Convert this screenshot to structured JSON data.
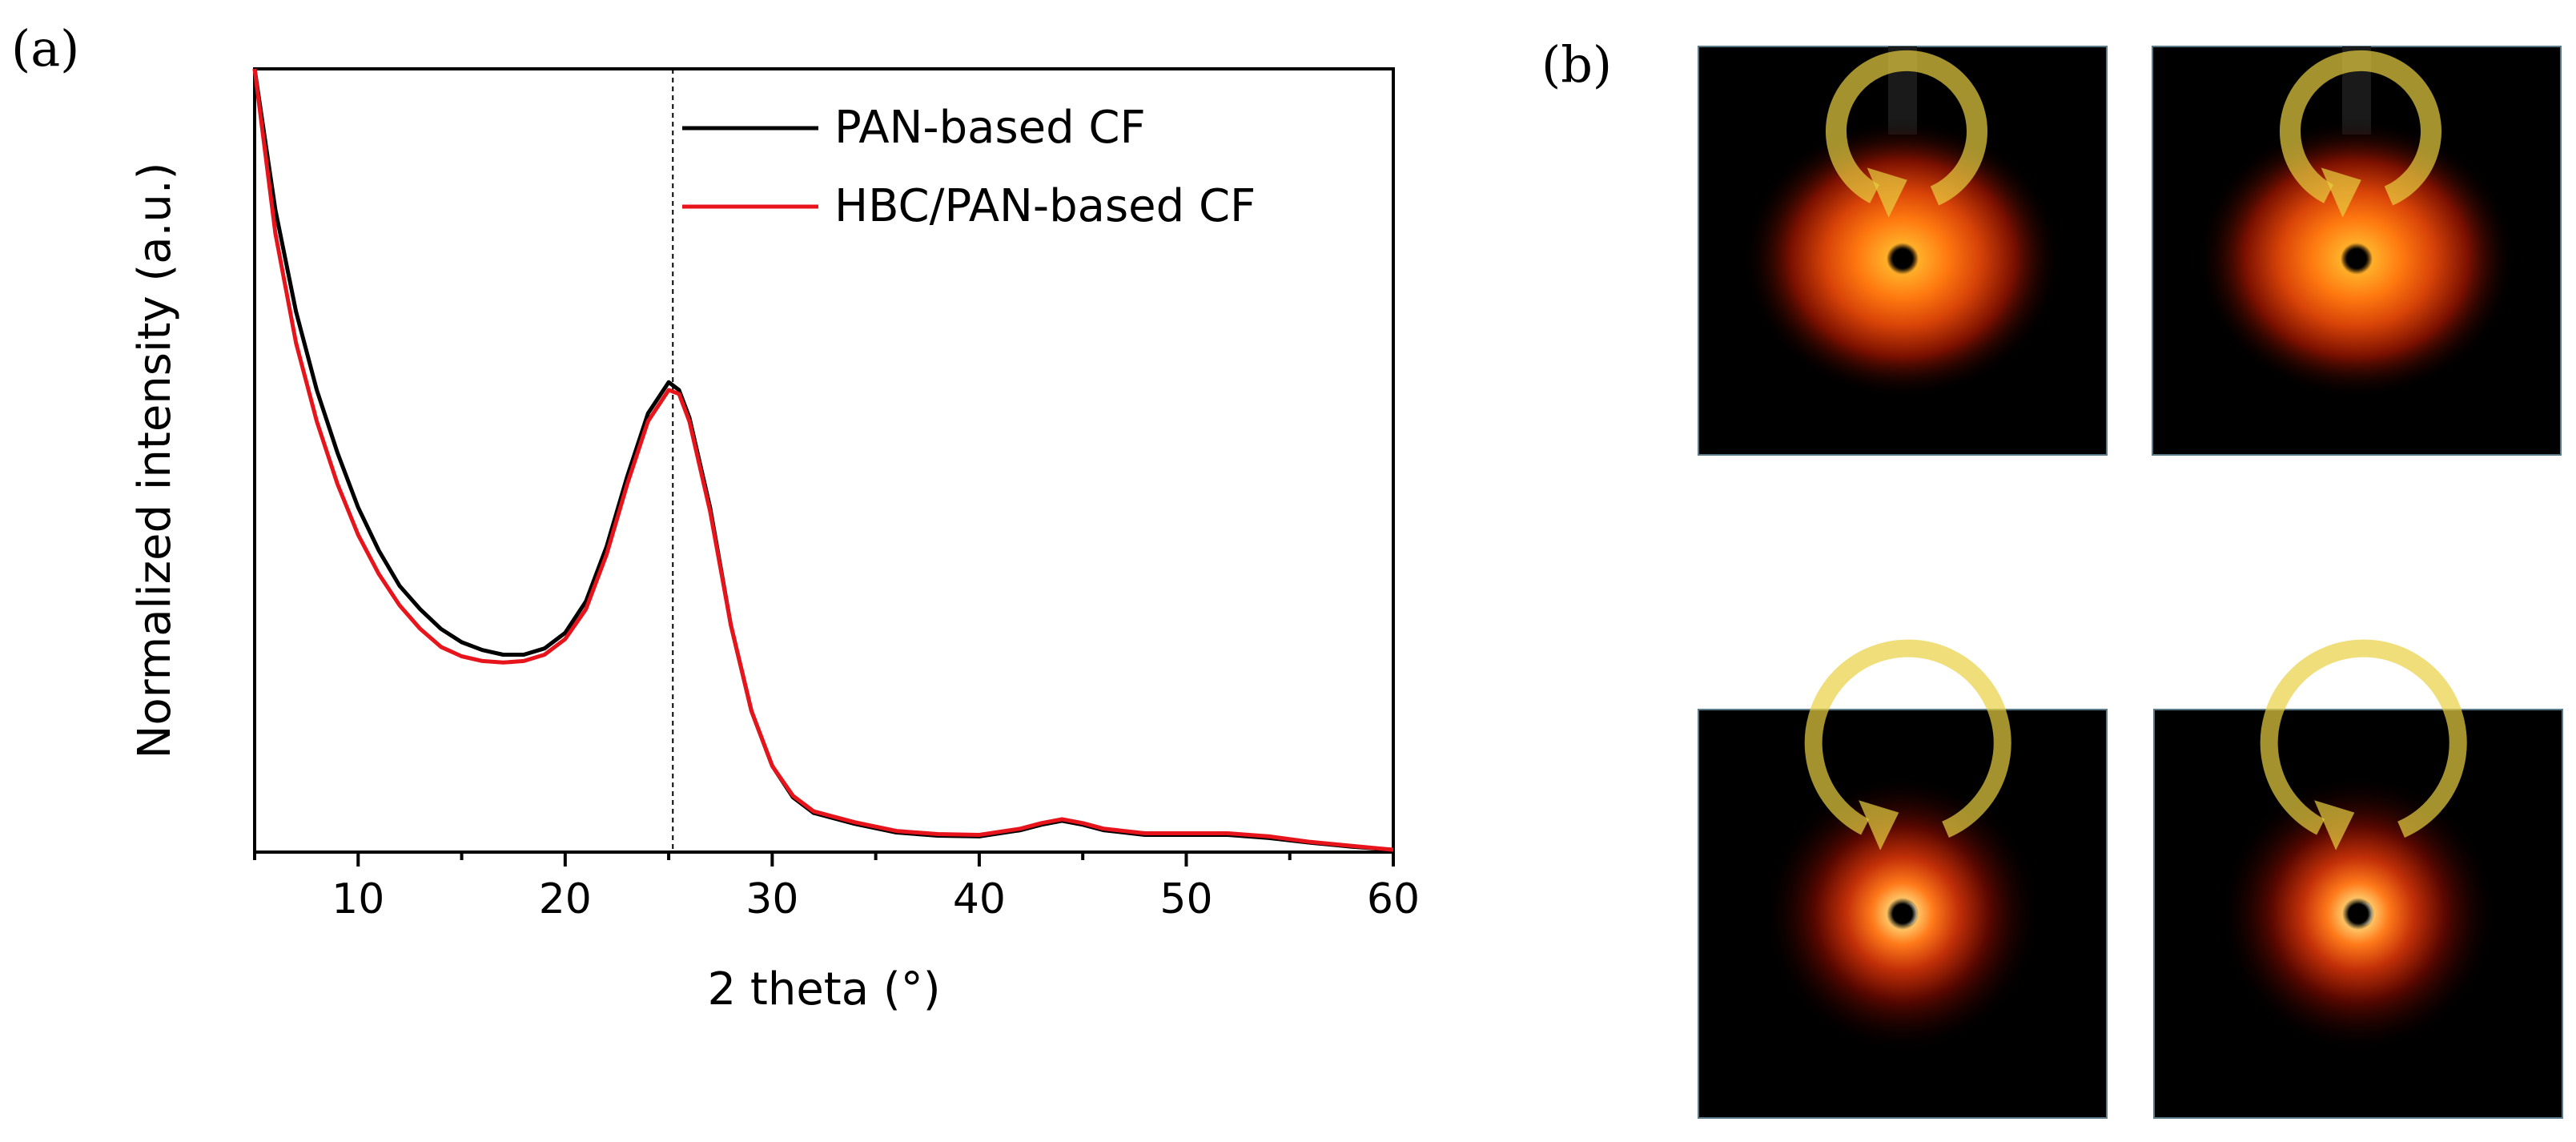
{
  "panels": {
    "a_label": "(a)",
    "b_label": "(b)"
  },
  "chart_data": {
    "type": "line",
    "title": "",
    "xlabel": "2 theta (°)",
    "ylabel": "Normalized intensity (a.u.)",
    "xlim": [
      5,
      60
    ],
    "ylim": [
      0,
      1
    ],
    "x_ticks": [
      10,
      20,
      30,
      40,
      50,
      60
    ],
    "y_ticks_shown": false,
    "grid": false,
    "legend_position": "top-right",
    "reference_line_x": 25.2,
    "series": [
      {
        "name": "PAN-based CF",
        "color": "#000000",
        "x": [
          5,
          6,
          7,
          8,
          9,
          10,
          11,
          12,
          13,
          14,
          15,
          16,
          17,
          18,
          19,
          20,
          21,
          22,
          23,
          24,
          25,
          25.5,
          26,
          27,
          28,
          29,
          30,
          31,
          32,
          34,
          36,
          38,
          40,
          42,
          43,
          44,
          45,
          46,
          48,
          50,
          52,
          54,
          56,
          58,
          60
        ],
        "y": [
          1.0,
          0.82,
          0.69,
          0.59,
          0.51,
          0.44,
          0.385,
          0.34,
          0.31,
          0.285,
          0.268,
          0.258,
          0.252,
          0.252,
          0.26,
          0.28,
          0.32,
          0.39,
          0.48,
          0.56,
          0.6,
          0.59,
          0.555,
          0.44,
          0.29,
          0.18,
          0.11,
          0.07,
          0.05,
          0.036,
          0.025,
          0.021,
          0.02,
          0.028,
          0.035,
          0.04,
          0.035,
          0.028,
          0.022,
          0.022,
          0.022,
          0.018,
          0.012,
          0.007,
          0.003
        ]
      },
      {
        "name": "HBC/PAN-based CF",
        "color": "#e8141c",
        "x": [
          5,
          6,
          7,
          8,
          9,
          10,
          11,
          12,
          13,
          14,
          15,
          16,
          17,
          18,
          19,
          20,
          21,
          22,
          23,
          24,
          25,
          25.5,
          26,
          27,
          28,
          29,
          30,
          31,
          32,
          34,
          36,
          38,
          40,
          42,
          43,
          44,
          45,
          46,
          48,
          50,
          52,
          54,
          56,
          58,
          60
        ],
        "y": [
          1.0,
          0.79,
          0.65,
          0.55,
          0.47,
          0.405,
          0.355,
          0.315,
          0.285,
          0.262,
          0.25,
          0.244,
          0.242,
          0.244,
          0.252,
          0.272,
          0.31,
          0.38,
          0.47,
          0.55,
          0.59,
          0.585,
          0.55,
          0.435,
          0.29,
          0.18,
          0.11,
          0.072,
          0.052,
          0.038,
          0.027,
          0.023,
          0.022,
          0.03,
          0.037,
          0.042,
          0.037,
          0.03,
          0.024,
          0.024,
          0.024,
          0.02,
          0.013,
          0.008,
          0.003
        ]
      }
    ]
  },
  "saxs_images": [
    {
      "position": "top-left",
      "pattern": "oval",
      "arrow_color": "#e8d040"
    },
    {
      "position": "top-right",
      "pattern": "oval",
      "arrow_color": "#e8d040"
    },
    {
      "position": "bottom-left",
      "pattern": "ring",
      "arrow_color": "#e8d040"
    },
    {
      "position": "bottom-right",
      "pattern": "ring",
      "arrow_color": "#e8d040"
    }
  ]
}
